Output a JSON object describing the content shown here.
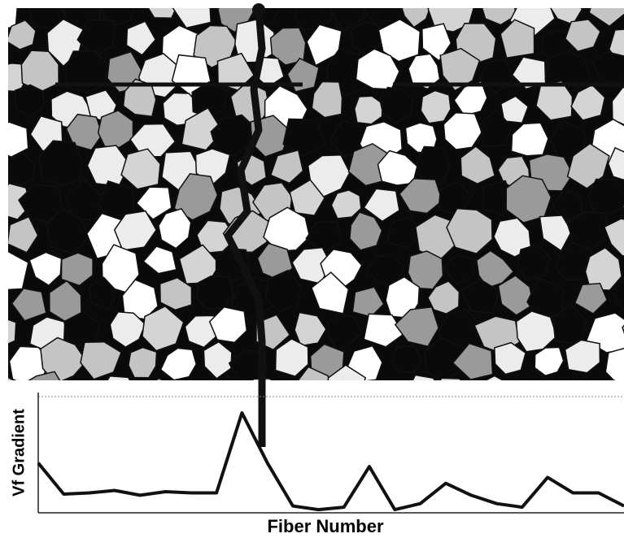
{
  "chart_data": {
    "type": "line",
    "xlabel": "Fiber Number",
    "ylabel": "Vf Gradient",
    "color": "#111111",
    "ylim": [
      0,
      10
    ],
    "values": [
      4.1,
      1.5,
      1.6,
      1.8,
      1.4,
      1.7,
      1.6,
      1.6,
      8.3,
      4.1,
      0.5,
      0.2,
      0.4,
      3.8,
      0.2,
      0.7,
      2.4,
      1.4,
      0.7,
      0.4,
      2.9,
      1.6,
      1.6,
      0.5
    ]
  }
}
